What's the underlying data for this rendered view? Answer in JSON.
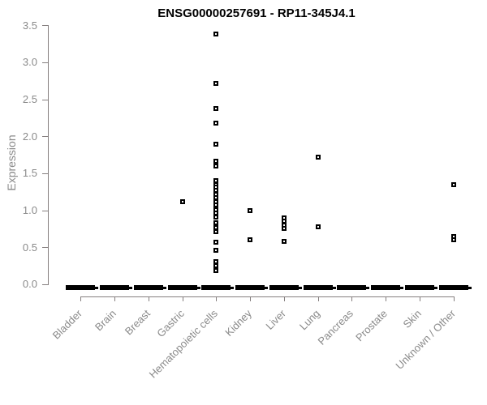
{
  "chart_data": {
    "type": "scatter",
    "subtype": "strip-plot",
    "title": "ENSG00000257691 - RP11-345J4.1",
    "ylabel": "Expression",
    "xlabel": "",
    "ylim": [
      0.0,
      3.5
    ],
    "yticks": [
      "0.0",
      "0.5",
      "1.0",
      "1.5",
      "2.0",
      "2.5",
      "3.0",
      "3.5"
    ],
    "grid": false,
    "legend": null,
    "marker": "open-square",
    "marker_color": "#000000",
    "axis_color": "#857f7f",
    "label_color": "#8a8a8a",
    "categories": [
      "Bladder",
      "Brain",
      "Breast",
      "Gastric",
      "Hematopoietic cells",
      "Kidney",
      "Liver",
      "Lung",
      "Pancreas",
      "Prostate",
      "Skin",
      "Unknown / Other"
    ],
    "series": [
      {
        "category": "Bladder",
        "zero_cluster": true,
        "nonzero_values": []
      },
      {
        "category": "Brain",
        "zero_cluster": true,
        "nonzero_values": []
      },
      {
        "category": "Breast",
        "zero_cluster": true,
        "nonzero_values": []
      },
      {
        "category": "Gastric",
        "zero_cluster": true,
        "nonzero_values": [
          1.12
        ]
      },
      {
        "category": "Hematopoietic cells",
        "zero_cluster": true,
        "nonzero_values": [
          3.38,
          2.72,
          2.37,
          2.18,
          1.89,
          1.66,
          1.6,
          1.4,
          1.35,
          1.31,
          1.27,
          1.22,
          1.17,
          1.12,
          1.07,
          1.01,
          0.96,
          0.91,
          0.83,
          0.77,
          0.71,
          0.57,
          0.46,
          0.31,
          0.25,
          0.19
        ]
      },
      {
        "category": "Kidney",
        "zero_cluster": true,
        "nonzero_values": [
          1.0,
          0.6
        ]
      },
      {
        "category": "Liver",
        "zero_cluster": true,
        "nonzero_values": [
          0.9,
          0.85,
          0.8,
          0.76,
          0.58
        ]
      },
      {
        "category": "Lung",
        "zero_cluster": true,
        "nonzero_values": [
          1.72,
          0.78
        ]
      },
      {
        "category": "Pancreas",
        "zero_cluster": true,
        "nonzero_values": []
      },
      {
        "category": "Prostate",
        "zero_cluster": true,
        "nonzero_values": []
      },
      {
        "category": "Skin",
        "zero_cluster": true,
        "nonzero_values": []
      },
      {
        "category": "Unknown / Other",
        "zero_cluster": true,
        "nonzero_values": [
          1.35,
          0.65,
          0.6
        ]
      }
    ]
  }
}
